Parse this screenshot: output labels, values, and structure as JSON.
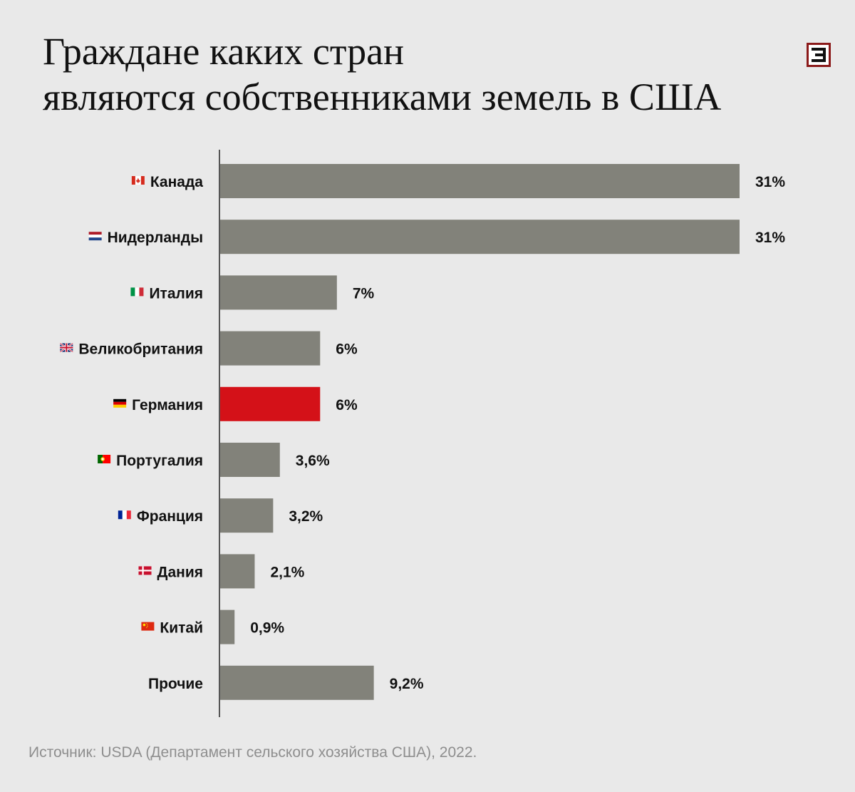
{
  "header": {
    "title_line1": "Граждане каких стран",
    "title_line2": "являются собственниками земель в США"
  },
  "logo": {
    "icon": "e-logo-icon",
    "border_color": "#8b1a1a"
  },
  "colors": {
    "bar": "#82827a",
    "highlight": "#d41118",
    "background": "#e9e9e9",
    "axis": "#555555"
  },
  "chart_data": {
    "type": "bar",
    "orientation": "horizontal",
    "title": "Граждане каких стран являются собственниками земель в США",
    "categories": [
      "Канада",
      "Нидерланды",
      "Италия",
      "Великобритания",
      "Германия",
      "Португалия",
      "Франция",
      "Дания",
      "Китай",
      "Прочие"
    ],
    "flag_icons": [
      "canada-flag-icon",
      "netherlands-flag-icon",
      "italy-flag-icon",
      "uk-flag-icon",
      "germany-flag-icon",
      "portugal-flag-icon",
      "france-flag-icon",
      "denmark-flag-icon",
      "china-flag-icon",
      ""
    ],
    "values": [
      31,
      31,
      7,
      6,
      6,
      3.6,
      3.2,
      2.1,
      0.9,
      9.2
    ],
    "value_labels": [
      "31%",
      "31%",
      "7%",
      "6%",
      "6%",
      "3,6%",
      "3,2%",
      "2,1%",
      "0,9%",
      "9,2%"
    ],
    "highlight_index": 4,
    "xlim": [
      0,
      31
    ],
    "grid": false,
    "legend": "none"
  },
  "footer": {
    "source": "Источник: USDA (Департамент сельского хозяйства США), 2022."
  }
}
